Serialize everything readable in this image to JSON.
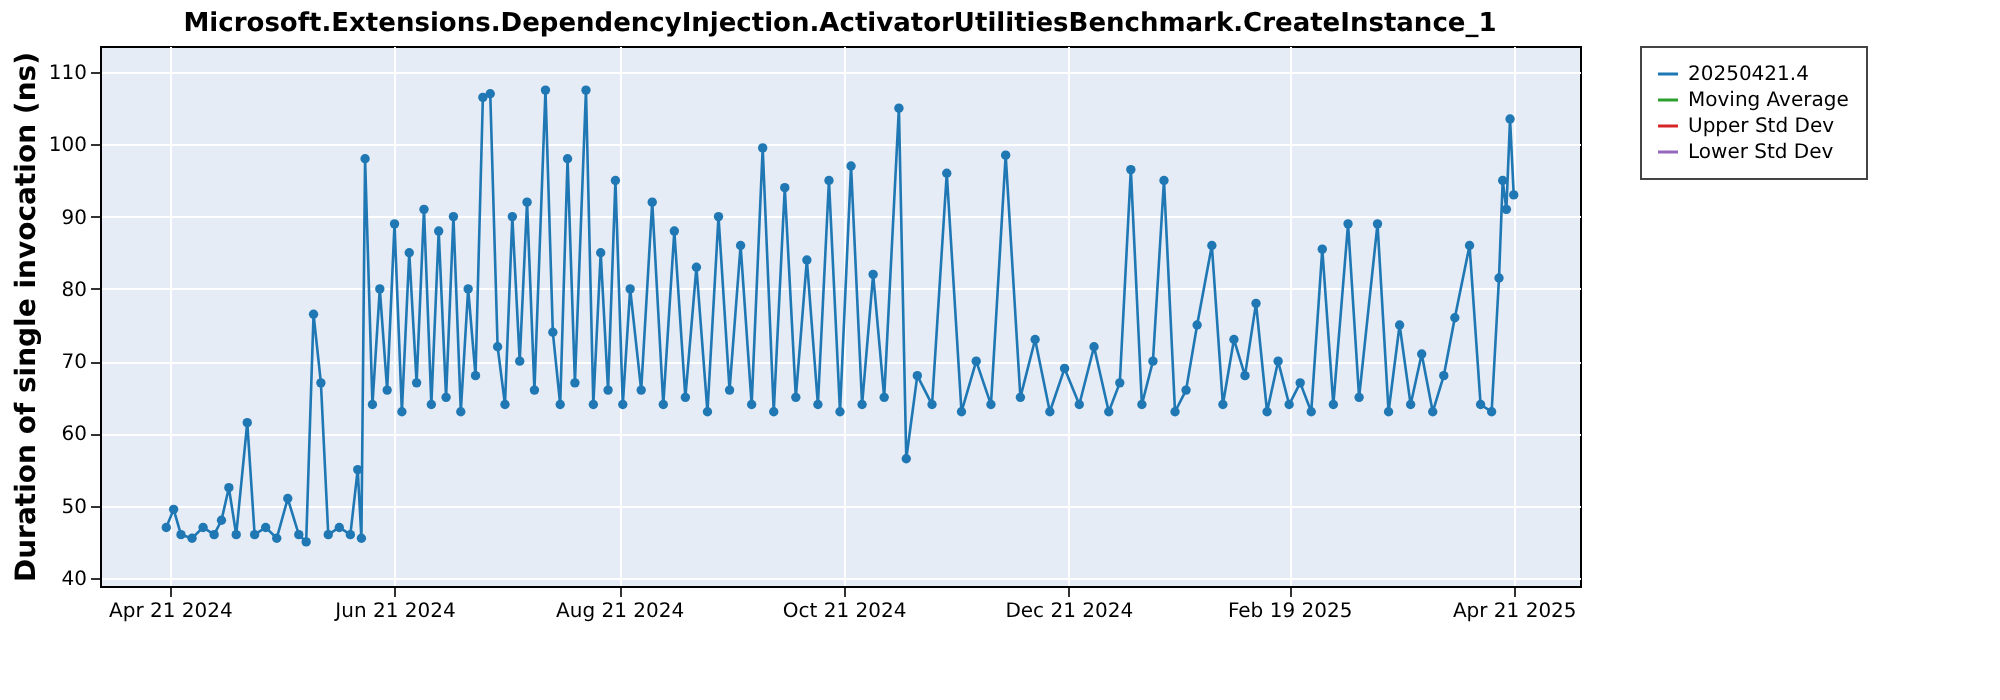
{
  "chart_data": {
    "type": "line",
    "title": "Microsoft.Extensions.DependencyInjection.ActivatorUtilitiesBenchmark.CreateInstance_1",
    "ylabel": "Duration of single invocation (ns)",
    "x": [
      "2024-04-20",
      "2024-04-22",
      "2024-04-24",
      "2024-04-27",
      "2024-04-30",
      "2024-05-03",
      "2024-05-05",
      "2024-05-07",
      "2024-05-09",
      "2024-05-12",
      "2024-05-14",
      "2024-05-17",
      "2024-05-20",
      "2024-05-23",
      "2024-05-26",
      "2024-05-28",
      "2024-05-30",
      "2024-06-01",
      "2024-06-03",
      "2024-06-06",
      "2024-06-09",
      "2024-06-11",
      "2024-06-12",
      "2024-06-13",
      "2024-06-15",
      "2024-06-17",
      "2024-06-19",
      "2024-06-21",
      "2024-06-23",
      "2024-06-25",
      "2024-06-27",
      "2024-06-29",
      "2024-07-01",
      "2024-07-03",
      "2024-07-05",
      "2024-07-07",
      "2024-07-09",
      "2024-07-11",
      "2024-07-13",
      "2024-07-15",
      "2024-07-17",
      "2024-07-19",
      "2024-07-21",
      "2024-07-23",
      "2024-07-25",
      "2024-07-27",
      "2024-07-29",
      "2024-08-01",
      "2024-08-03",
      "2024-08-05",
      "2024-08-07",
      "2024-08-09",
      "2024-08-12",
      "2024-08-14",
      "2024-08-16",
      "2024-08-18",
      "2024-08-20",
      "2024-08-22",
      "2024-08-24",
      "2024-08-27",
      "2024-08-30",
      "2024-09-02",
      "2024-09-05",
      "2024-09-08",
      "2024-09-11",
      "2024-09-14",
      "2024-09-17",
      "2024-09-20",
      "2024-09-23",
      "2024-09-26",
      "2024-09-29",
      "2024-10-02",
      "2024-10-05",
      "2024-10-08",
      "2024-10-11",
      "2024-10-14",
      "2024-10-17",
      "2024-10-20",
      "2024-10-23",
      "2024-10-26",
      "2024-10-29",
      "2024-11-01",
      "2024-11-05",
      "2024-11-07",
      "2024-11-10",
      "2024-11-14",
      "2024-11-18",
      "2024-11-22",
      "2024-11-26",
      "2024-11-30",
      "2024-12-04",
      "2024-12-08",
      "2024-12-12",
      "2024-12-16",
      "2024-12-20",
      "2024-12-24",
      "2024-12-28",
      "2025-01-01",
      "2025-01-04",
      "2025-01-07",
      "2025-01-10",
      "2025-01-13",
      "2025-01-16",
      "2025-01-19",
      "2025-01-22",
      "2025-01-25",
      "2025-01-29",
      "2025-02-01",
      "2025-02-04",
      "2025-02-07",
      "2025-02-10",
      "2025-02-13",
      "2025-02-16",
      "2025-02-19",
      "2025-02-22",
      "2025-02-25",
      "2025-02-28",
      "2025-03-03",
      "2025-03-07",
      "2025-03-10",
      "2025-03-15",
      "2025-03-18",
      "2025-03-21",
      "2025-03-24",
      "2025-03-27",
      "2025-03-30",
      "2025-04-02",
      "2025-04-05",
      "2025-04-09",
      "2025-04-12",
      "2025-04-15",
      "2025-04-17",
      "2025-04-18",
      "2025-04-19",
      "2025-04-20",
      "2025-04-21"
    ],
    "series": [
      {
        "name": "20250421.4",
        "color": "#1f77b4",
        "values": [
          47,
          49.5,
          46,
          45.5,
          47,
          46,
          48,
          52.5,
          46,
          61.5,
          46,
          47,
          45.5,
          51,
          46,
          45,
          76.5,
          67,
          46,
          47,
          46,
          55,
          45.5,
          98,
          64,
          80,
          66,
          89,
          63,
          85,
          67,
          91,
          64,
          88,
          65,
          90,
          63,
          80,
          68,
          106.5,
          107,
          72,
          64,
          90,
          70,
          92,
          66,
          107.5,
          74,
          64,
          98,
          67,
          107.5,
          64,
          85,
          66,
          95,
          64,
          80,
          66,
          92,
          64,
          88,
          65,
          83,
          63,
          90,
          66,
          86,
          64,
          99.5,
          63,
          94,
          65,
          84,
          64,
          95,
          63,
          97,
          64,
          82,
          65,
          105,
          56.5,
          68,
          64,
          96,
          63,
          70,
          64,
          98.5,
          65,
          73,
          63,
          69,
          64,
          72,
          63,
          67,
          96.5,
          64,
          70,
          95,
          63,
          66,
          75,
          86,
          64,
          73,
          68,
          78,
          63,
          70,
          64,
          67,
          63,
          85.5,
          64,
          89,
          65,
          89,
          63,
          75,
          64,
          71,
          63,
          68,
          76,
          86,
          64,
          63,
          81.5,
          95,
          91,
          103.5,
          93
        ]
      },
      {
        "name": "Moving Average",
        "color": "#2ca02c",
        "values": [
          null,
          null,
          null,
          null,
          null,
          null,
          null,
          null,
          null,
          null,
          null,
          null,
          null,
          null,
          null,
          null,
          null,
          null,
          null,
          null,
          null,
          null,
          null,
          null,
          null,
          null,
          null,
          null,
          null,
          null,
          null,
          null,
          null,
          null,
          null,
          null,
          null,
          null,
          null,
          null,
          null,
          null,
          null,
          null,
          null,
          null,
          null,
          null,
          null,
          null,
          null,
          null,
          null,
          null,
          null,
          null,
          null,
          null,
          null,
          null,
          null,
          null,
          null,
          null,
          null,
          null,
          null,
          null,
          null,
          null,
          null,
          null,
          null,
          null,
          null,
          null,
          null,
          null,
          null,
          null,
          null,
          null,
          null,
          null,
          null,
          null,
          null,
          null,
          null,
          null,
          null,
          null,
          null,
          null,
          null,
          null,
          null,
          null,
          null,
          null,
          null,
          null,
          null,
          null,
          null,
          null,
          null,
          null,
          null,
          null,
          null,
          null,
          null,
          null,
          null,
          null,
          null,
          null,
          null,
          null,
          null,
          null,
          null,
          null,
          null,
          null,
          null,
          null,
          null,
          null,
          null,
          null,
          null,
          null,
          null,
          null
        ]
      },
      {
        "name": "Upper Std Dev",
        "color": "#d62728",
        "values": [
          null,
          null,
          null,
          null,
          null,
          null,
          null,
          null,
          null,
          null,
          null,
          null,
          null,
          null,
          null,
          null,
          null,
          null,
          null,
          null,
          null,
          null,
          null,
          null,
          null,
          null,
          null,
          null,
          null,
          null,
          null,
          null,
          null,
          null,
          null,
          null,
          null,
          null,
          null,
          null,
          null,
          null,
          null,
          null,
          null,
          null,
          null,
          null,
          null,
          null,
          null,
          null,
          null,
          null,
          null,
          null,
          null,
          null,
          null,
          null,
          null,
          null,
          null,
          null,
          null,
          null,
          null,
          null,
          null,
          null,
          null,
          null,
          null,
          null,
          null,
          null,
          null,
          null,
          null,
          null,
          null,
          null,
          null,
          null,
          null,
          null,
          null,
          null,
          null,
          null,
          null,
          null,
          null,
          null,
          null,
          null,
          null,
          null,
          null,
          null,
          null,
          null,
          null,
          null,
          null,
          null,
          null,
          null,
          null,
          null,
          null,
          null,
          null,
          null,
          null,
          null,
          null,
          null,
          null,
          null,
          null,
          null,
          null,
          null,
          null,
          null,
          null,
          null,
          null,
          null,
          null,
          null,
          null,
          null,
          null,
          null
        ]
      },
      {
        "name": "Lower Std Dev",
        "color": "#9467bd",
        "values": [
          null,
          null,
          null,
          null,
          null,
          null,
          null,
          null,
          null,
          null,
          null,
          null,
          null,
          null,
          null,
          null,
          null,
          null,
          null,
          null,
          null,
          null,
          null,
          null,
          null,
          null,
          null,
          null,
          null,
          null,
          null,
          null,
          null,
          null,
          null,
          null,
          null,
          null,
          null,
          null,
          null,
          null,
          null,
          null,
          null,
          null,
          null,
          null,
          null,
          null,
          null,
          null,
          null,
          null,
          null,
          null,
          null,
          null,
          null,
          null,
          null,
          null,
          null,
          null,
          null,
          null,
          null,
          null,
          null,
          null,
          null,
          null,
          null,
          null,
          null,
          null,
          null,
          null,
          null,
          null,
          null,
          null,
          null,
          null,
          null,
          null,
          null,
          null,
          null,
          null,
          null,
          null,
          null,
          null,
          null,
          null,
          null,
          null,
          null,
          null,
          null,
          null,
          null,
          null,
          null,
          null,
          null,
          null,
          null,
          null,
          null,
          null,
          null,
          null,
          null,
          null,
          null,
          null,
          null,
          null,
          null,
          null,
          null,
          null,
          null,
          null,
          null,
          null,
          null,
          null,
          null,
          null,
          null,
          null,
          null,
          null
        ]
      }
    ],
    "ylim": [
      38.9,
      113.6
    ],
    "yticks": [
      40,
      50,
      60,
      70,
      80,
      90,
      100,
      110
    ],
    "xlim": [
      "2024-04-02",
      "2025-05-09"
    ],
    "xticks": [
      {
        "value": "2024-04-21",
        "label": "Apr 21 2024"
      },
      {
        "value": "2024-06-21",
        "label": "Jun 21 2024"
      },
      {
        "value": "2024-08-21",
        "label": "Aug 21 2024"
      },
      {
        "value": "2024-10-21",
        "label": "Oct 21 2024"
      },
      {
        "value": "2024-12-21",
        "label": "Dec 21 2024"
      },
      {
        "value": "2025-02-19",
        "label": "Feb 19 2025"
      },
      {
        "value": "2025-04-21",
        "label": "Apr 21 2025"
      }
    ],
    "grid": true,
    "legend": "right",
    "marker": "circle",
    "line_style": "solid"
  }
}
